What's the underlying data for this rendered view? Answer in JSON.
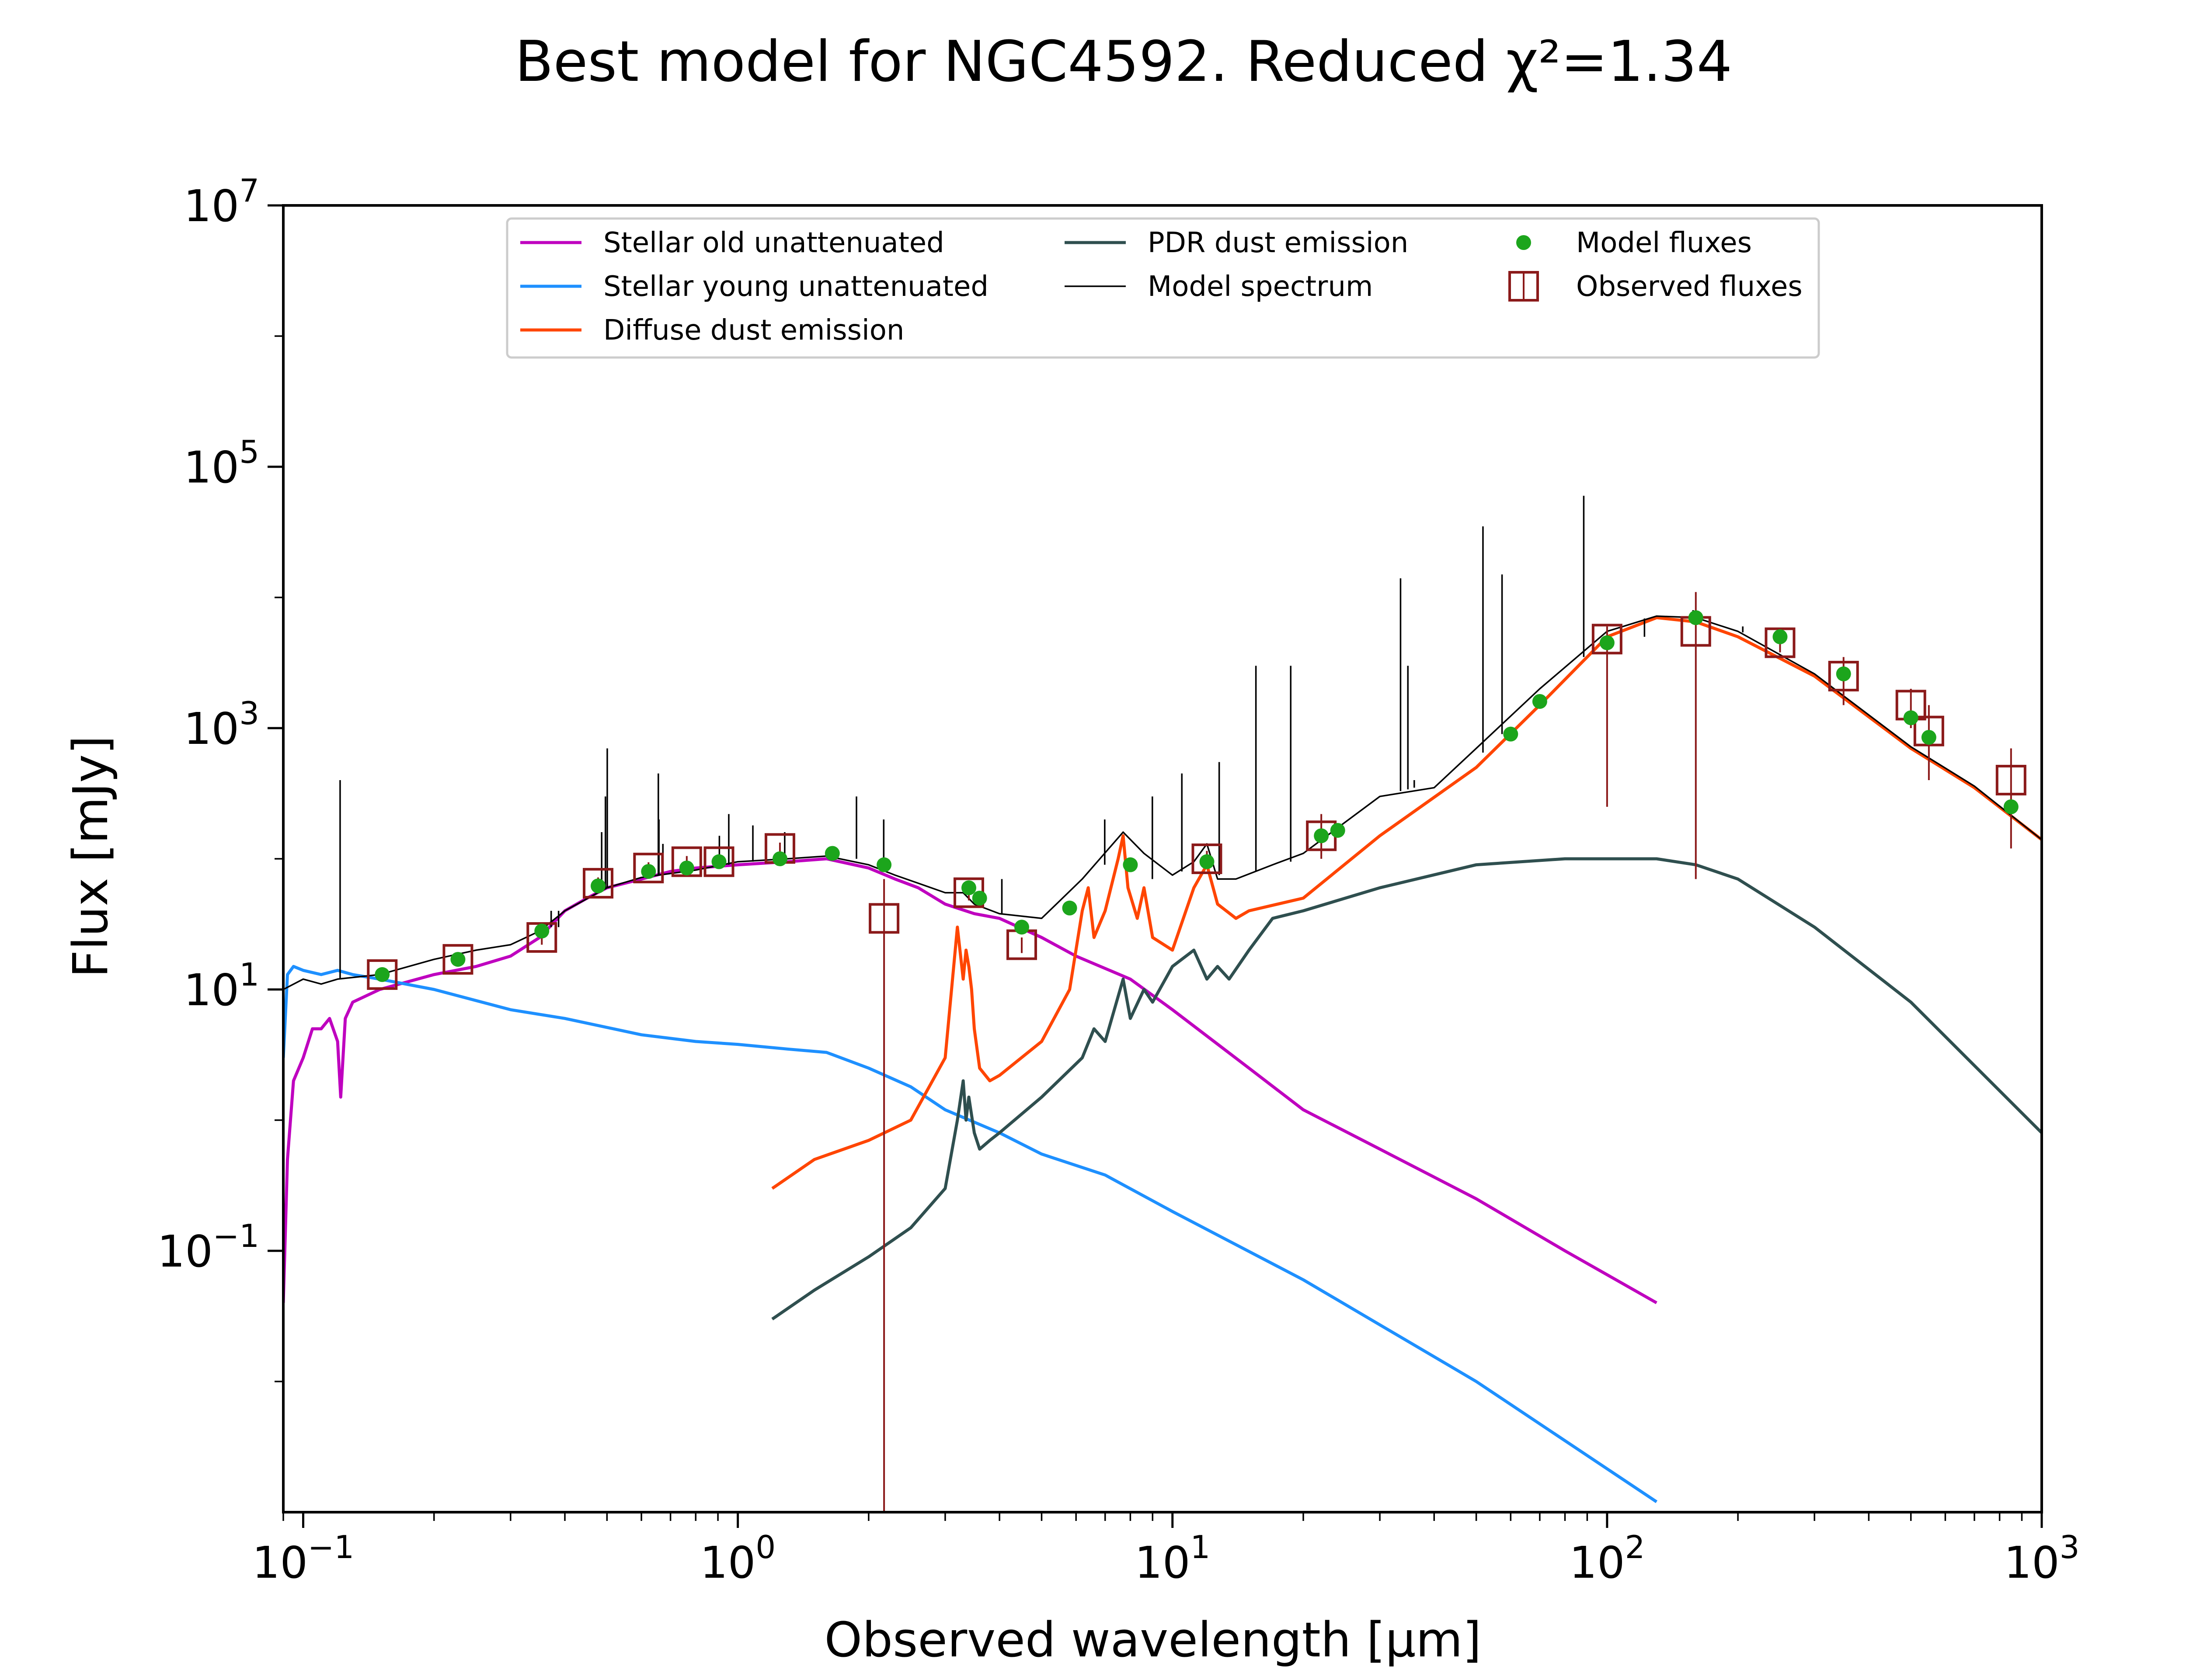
{
  "title": "Best model for NGC4592. Reduced χ²=1.34",
  "chart_data": {
    "type": "line",
    "title": "Best model for NGC4592. Reduced χ²=1.34",
    "xlabel": "Observed wavelength [μm]",
    "ylabel": "Flux [mJy]",
    "xscale": "log",
    "yscale": "log",
    "xlim": [
      0.09,
      1000
    ],
    "ylim": [
      0.001,
      10000000
    ],
    "x_ticks": [
      {
        "value": 0.1,
        "base": "10",
        "exp": "−1"
      },
      {
        "value": 1,
        "base": "10",
        "exp": "0"
      },
      {
        "value": 10,
        "base": "10",
        "exp": "1"
      },
      {
        "value": 100,
        "base": "10",
        "exp": "2"
      },
      {
        "value": 1000,
        "base": "10",
        "exp": "3"
      }
    ],
    "y_ticks": [
      {
        "value": 0.1,
        "base": "10",
        "exp": "−1"
      },
      {
        "value": 10,
        "base": "10",
        "exp": "1"
      },
      {
        "value": 1000,
        "base": "10",
        "exp": "3"
      },
      {
        "value": 100000,
        "base": "10",
        "exp": "5"
      },
      {
        "value": 10000000,
        "base": "10",
        "exp": "7"
      }
    ],
    "grid": false,
    "legend_position": "top-center",
    "legend": [
      {
        "label": "Stellar old unattenuated",
        "color": "#bf00bf",
        "kind": "line"
      },
      {
        "label": "Stellar young unattenuated",
        "color": "#1e90ff",
        "kind": "line"
      },
      {
        "label": "Diffuse dust emission",
        "color": "#ff4500",
        "kind": "line"
      },
      {
        "label": "PDR dust emission",
        "color": "#2f4f4f",
        "kind": "line"
      },
      {
        "label": "Model spectrum",
        "color": "#000000",
        "kind": "thinline"
      },
      {
        "label": "Model fluxes",
        "color": "#1ca51c",
        "kind": "dot"
      },
      {
        "label": "Observed fluxes",
        "color": "#8b1a1a",
        "kind": "square"
      }
    ],
    "series": [
      {
        "name": "Stellar old unattenuated",
        "color": "#bf00bf",
        "x": [
          0.09,
          0.092,
          0.095,
          0.1,
          0.105,
          0.11,
          0.115,
          0.12,
          0.122,
          0.125,
          0.13,
          0.15,
          0.2,
          0.25,
          0.3,
          0.35,
          0.4,
          0.45,
          0.5,
          0.6,
          0.7,
          0.8,
          1.0,
          1.3,
          1.6,
          2.0,
          2.3,
          2.6,
          3.0,
          3.5,
          4.0,
          5.0,
          6.0,
          8.0,
          10,
          15,
          20,
          30,
          50,
          80,
          130
        ],
        "y": [
          0.04,
          0.5,
          2.0,
          3.0,
          5.0,
          5.0,
          6.0,
          4.0,
          1.5,
          6.0,
          8.0,
          10,
          13,
          15,
          18,
          25,
          40,
          50,
          60,
          70,
          80,
          85,
          90,
          95,
          100,
          85,
          70,
          60,
          45,
          38,
          35,
          25,
          18,
          12,
          7.0,
          2.5,
          1.2,
          0.6,
          0.25,
          0.1,
          0.04
        ]
      },
      {
        "name": "Stellar young unattenuated",
        "color": "#1e90ff",
        "x": [
          0.09,
          0.092,
          0.095,
          0.1,
          0.11,
          0.12,
          0.13,
          0.15,
          0.2,
          0.3,
          0.4,
          0.6,
          0.8,
          1.0,
          1.3,
          1.6,
          2.0,
          2.5,
          3.0,
          4.0,
          5.0,
          7.0,
          10,
          20,
          50,
          130
        ],
        "y": [
          3.0,
          13,
          15,
          14,
          13,
          14,
          13,
          12,
          10,
          7.0,
          6.0,
          4.5,
          4.0,
          3.8,
          3.5,
          3.3,
          2.5,
          1.8,
          1.2,
          0.8,
          0.55,
          0.38,
          0.2,
          0.06,
          0.01,
          0.0012
        ]
      },
      {
        "name": "Diffuse dust emission",
        "color": "#ff4500",
        "x": [
          1.2,
          1.5,
          2.0,
          2.5,
          3.0,
          3.2,
          3.3,
          3.35,
          3.4,
          3.45,
          3.5,
          3.6,
          3.8,
          4.0,
          5.0,
          5.8,
          6.2,
          6.4,
          6.6,
          7.0,
          7.5,
          7.7,
          7.9,
          8.3,
          8.6,
          9.0,
          10,
          11.2,
          12,
          12.7,
          14,
          15,
          20,
          30,
          50,
          70,
          100,
          130,
          160,
          200,
          300,
          500,
          700,
          1000
        ],
        "y": [
          0.3,
          0.5,
          0.7,
          1.0,
          3.0,
          30,
          12,
          20,
          15,
          10,
          5.0,
          2.5,
          2.0,
          2.2,
          4.0,
          10,
          40,
          60,
          25,
          40,
          100,
          150,
          60,
          35,
          60,
          25,
          20,
          60,
          90,
          45,
          35,
          40,
          50,
          150,
          500,
          1500,
          5000,
          7000,
          6500,
          5000,
          2500,
          700,
          350,
          140
        ]
      },
      {
        "name": "PDR dust emission",
        "color": "#2f4f4f",
        "x": [
          1.2,
          1.5,
          2.0,
          2.5,
          3.0,
          3.2,
          3.3,
          3.35,
          3.4,
          3.5,
          3.6,
          3.8,
          4.0,
          5.0,
          6.2,
          6.6,
          7.0,
          7.7,
          8.0,
          8.6,
          9.0,
          10,
          11.2,
          12,
          12.7,
          13.5,
          15,
          17,
          20,
          30,
          50,
          80,
          100,
          130,
          160,
          200,
          300,
          500,
          1000
        ],
        "y": [
          0.03,
          0.05,
          0.09,
          0.15,
          0.3,
          1.0,
          2.0,
          1.0,
          1.5,
          0.8,
          0.6,
          0.7,
          0.8,
          1.5,
          3.0,
          5.0,
          4.0,
          12,
          6.0,
          10,
          8.0,
          15,
          20,
          12,
          15,
          12,
          20,
          35,
          40,
          60,
          90,
          100,
          100,
          100,
          90,
          70,
          30,
          8.0,
          0.8
        ]
      },
      {
        "name": "Model spectrum",
        "color": "#000000",
        "x": [
          0.09,
          0.1,
          0.11,
          0.12,
          0.15,
          0.2,
          0.25,
          0.3,
          0.35,
          0.4,
          0.5,
          0.6,
          0.8,
          1.0,
          1.3,
          1.6,
          2.0,
          2.3,
          2.6,
          3.0,
          3.3,
          3.5,
          4.0,
          5.0,
          6.2,
          7.7,
          8.6,
          10,
          11.2,
          12,
          12.7,
          14,
          17,
          20,
          30,
          40,
          50,
          70,
          100,
          130,
          160,
          200,
          300,
          500,
          700,
          1000
        ],
        "y": [
          10,
          12,
          11,
          12,
          13,
          17,
          20,
          22,
          28,
          40,
          60,
          72,
          82,
          95,
          100,
          105,
          90,
          75,
          65,
          55,
          55,
          45,
          38,
          35,
          70,
          160,
          110,
          75,
          95,
          130,
          70,
          70,
          90,
          110,
          300,
          350,
          700,
          2000,
          5500,
          7200,
          7000,
          5500,
          2600,
          720,
          360,
          140
        ]
      }
    ],
    "emission_lines": [
      {
        "x": 0.1216,
        "top": 400,
        "base": 12
      },
      {
        "x": 0.372,
        "top": 40,
        "base": 30
      },
      {
        "x": 0.3869,
        "top": 40,
        "base": 30
      },
      {
        "x": 0.4861,
        "top": 160,
        "base": 60
      },
      {
        "x": 0.4959,
        "top": 300,
        "base": 60
      },
      {
        "x": 0.5007,
        "top": 700,
        "base": 60
      },
      {
        "x": 0.6563,
        "top": 450,
        "base": 75
      },
      {
        "x": 0.6584,
        "top": 200,
        "base": 75
      },
      {
        "x": 0.6724,
        "top": 130,
        "base": 75
      },
      {
        "x": 0.9069,
        "top": 150,
        "base": 88
      },
      {
        "x": 0.9532,
        "top": 220,
        "base": 90
      },
      {
        "x": 1.083,
        "top": 180,
        "base": 95
      },
      {
        "x": 1.282,
        "top": 160,
        "base": 100
      },
      {
        "x": 1.875,
        "top": 300,
        "base": 100
      },
      {
        "x": 2.166,
        "top": 200,
        "base": 85
      },
      {
        "x": 4.05,
        "top": 70,
        "base": 38
      },
      {
        "x": 6.985,
        "top": 200,
        "base": 90
      },
      {
        "x": 8.99,
        "top": 300,
        "base": 70
      },
      {
        "x": 10.51,
        "top": 450,
        "base": 80
      },
      {
        "x": 12.81,
        "top": 550,
        "base": 75
      },
      {
        "x": 15.56,
        "top": 3000,
        "base": 80
      },
      {
        "x": 18.71,
        "top": 3000,
        "base": 95
      },
      {
        "x": 33.48,
        "top": 14000,
        "base": 330
      },
      {
        "x": 34.81,
        "top": 3000,
        "base": 340
      },
      {
        "x": 36.0,
        "top": 400,
        "base": 350
      },
      {
        "x": 51.81,
        "top": 35000,
        "base": 650
      },
      {
        "x": 57.32,
        "top": 15000,
        "base": 900
      },
      {
        "x": 88.36,
        "top": 60000,
        "base": 3500
      },
      {
        "x": 121.9,
        "top": 5000,
        "base": 6900
      },
      {
        "x": 157.7,
        "top": 8000,
        "base": 7000
      },
      {
        "x": 205.2,
        "top": 6000,
        "base": 5400
      }
    ],
    "model_fluxes": [
      {
        "x": 0.152,
        "y": 13
      },
      {
        "x": 0.227,
        "y": 17
      },
      {
        "x": 0.354,
        "y": 28
      },
      {
        "x": 0.477,
        "y": 62
      },
      {
        "x": 0.623,
        "y": 80
      },
      {
        "x": 0.763,
        "y": 85
      },
      {
        "x": 0.905,
        "y": 95
      },
      {
        "x": 1.25,
        "y": 100
      },
      {
        "x": 1.65,
        "y": 110
      },
      {
        "x": 2.17,
        "y": 90
      },
      {
        "x": 3.4,
        "y": 60
      },
      {
        "x": 3.6,
        "y": 50
      },
      {
        "x": 4.5,
        "y": 30
      },
      {
        "x": 5.8,
        "y": 42
      },
      {
        "x": 8.0,
        "y": 90
      },
      {
        "x": 12,
        "y": 95
      },
      {
        "x": 22,
        "y": 150
      },
      {
        "x": 24,
        "y": 165
      },
      {
        "x": 60,
        "y": 900
      },
      {
        "x": 70,
        "y": 1600
      },
      {
        "x": 100,
        "y": 4500
      },
      {
        "x": 160,
        "y": 7000
      },
      {
        "x": 250,
        "y": 5000
      },
      {
        "x": 350,
        "y": 2600
      },
      {
        "x": 500,
        "y": 1200
      },
      {
        "x": 550,
        "y": 850
      },
      {
        "x": 850,
        "y": 250
      }
    ],
    "observed_fluxes": [
      {
        "x": 0.152,
        "y": 13,
        "err_low": 11.5,
        "err_high": 14.5
      },
      {
        "x": 0.227,
        "y": 17,
        "err_low": 15.5,
        "err_high": 18.5
      },
      {
        "x": 0.354,
        "y": 25,
        "err_low": 22,
        "err_high": 28
      },
      {
        "x": 0.477,
        "y": 65,
        "err_low": 58,
        "err_high": 72
      },
      {
        "x": 0.623,
        "y": 85,
        "err_low": 76,
        "err_high": 94
      },
      {
        "x": 0.763,
        "y": 95,
        "err_low": 85,
        "err_high": 105
      },
      {
        "x": 0.905,
        "y": 95,
        "err_low": 85,
        "err_high": 105
      },
      {
        "x": 1.25,
        "y": 120,
        "err_low": 107,
        "err_high": 133
      },
      {
        "x": 2.17,
        "y": 35,
        "err_low": 0.001,
        "err_high": 70
      },
      {
        "x": 3.4,
        "y": 55,
        "err_low": 48,
        "err_high": 62
      },
      {
        "x": 4.5,
        "y": 22,
        "err_low": 19,
        "err_high": 25
      },
      {
        "x": 12,
        "y": 100,
        "err_low": 85,
        "err_high": 115
      },
      {
        "x": 22,
        "y": 150,
        "err_low": 100,
        "err_high": 220
      },
      {
        "x": 100,
        "y": 4800,
        "err_low": 250,
        "err_high": 6000
      },
      {
        "x": 160,
        "y": 5500,
        "err_low": 70,
        "err_high": 11000
      },
      {
        "x": 250,
        "y": 4500,
        "err_low": 3800,
        "err_high": 5200
      },
      {
        "x": 350,
        "y": 2500,
        "err_low": 1500,
        "err_high": 3500
      },
      {
        "x": 500,
        "y": 1500,
        "err_low": 1000,
        "err_high": 2000
      },
      {
        "x": 550,
        "y": 950,
        "err_low": 400,
        "err_high": 1500
      },
      {
        "x": 850,
        "y": 400,
        "err_low": 120,
        "err_high": 700
      }
    ]
  }
}
